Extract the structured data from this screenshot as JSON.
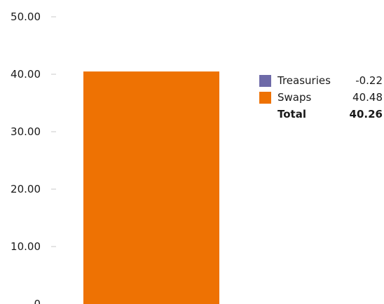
{
  "chart_data": {
    "type": "bar",
    "categories": [
      ""
    ],
    "series": [
      {
        "name": "Treasuries",
        "values": [
          -0.22
        ],
        "color": "#6e6aa8"
      },
      {
        "name": "Swaps",
        "values": [
          40.48
        ],
        "color": "#ee7203"
      }
    ],
    "ylim": [
      0,
      50
    ],
    "yticks": [
      "0",
      "10.00",
      "20.00",
      "30.00",
      "40.00",
      "50.00"
    ],
    "stacked": true,
    "grid": false,
    "legend_position": "right",
    "legend": [
      {
        "label": "Treasuries",
        "value": "-0.22",
        "color": "#6e6aa8"
      },
      {
        "label": "Swaps",
        "value": "40.48",
        "color": "#ee7203"
      }
    ],
    "total": {
      "label": "Total",
      "value": "40.26"
    }
  }
}
